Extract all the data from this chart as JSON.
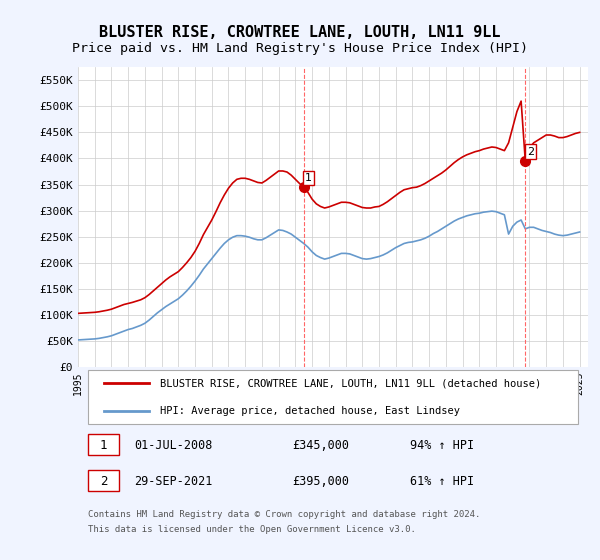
{
  "title": "BLUSTER RISE, CROWTREE LANE, LOUTH, LN11 9LL",
  "subtitle": "Price paid vs. HM Land Registry's House Price Index (HPI)",
  "title_fontsize": 11,
  "subtitle_fontsize": 9.5,
  "xlim": [
    1995.0,
    2025.5
  ],
  "ylim": [
    0,
    575000
  ],
  "yticks": [
    0,
    50000,
    100000,
    150000,
    200000,
    250000,
    300000,
    350000,
    400000,
    450000,
    500000,
    550000
  ],
  "ytick_labels": [
    "£0",
    "£50K",
    "£100K",
    "£150K",
    "£200K",
    "£250K",
    "£300K",
    "£350K",
    "£400K",
    "£450K",
    "£500K",
    "£550K"
  ],
  "xtick_years": [
    1995,
    1996,
    1997,
    1998,
    1999,
    2000,
    2001,
    2002,
    2003,
    2004,
    2005,
    2006,
    2007,
    2008,
    2009,
    2010,
    2011,
    2012,
    2013,
    2014,
    2015,
    2016,
    2017,
    2018,
    2019,
    2020,
    2021,
    2022,
    2023,
    2024,
    2025
  ],
  "sale1_x": 2008.5,
  "sale1_y": 345000,
  "sale1_label": "01-JUL-2008",
  "sale1_price": "£345,000",
  "sale1_hpi": "94% ↑ HPI",
  "sale2_x": 2021.75,
  "sale2_y": 395000,
  "sale2_label": "29-SEP-2021",
  "sale2_price": "£395,000",
  "sale2_hpi": "61% ↑ HPI",
  "red_line_color": "#cc0000",
  "blue_line_color": "#6699cc",
  "vline_color": "#ff6666",
  "marker_color": "#cc0000",
  "legend_line1": "BLUSTER RISE, CROWTREE LANE, LOUTH, LN11 9LL (detached house)",
  "legend_line2": "HPI: Average price, detached house, East Lindsey",
  "footer1": "Contains HM Land Registry data © Crown copyright and database right 2024.",
  "footer2": "This data is licensed under the Open Government Licence v3.0.",
  "background_color": "#f0f4ff",
  "plot_bg_color": "#ffffff",
  "red_hpi_x": [
    1995.0,
    1995.25,
    1995.5,
    1995.75,
    1996.0,
    1996.25,
    1996.5,
    1996.75,
    1997.0,
    1997.25,
    1997.5,
    1997.75,
    1998.0,
    1998.25,
    1998.5,
    1998.75,
    1999.0,
    1999.25,
    1999.5,
    1999.75,
    2000.0,
    2000.25,
    2000.5,
    2000.75,
    2001.0,
    2001.25,
    2001.5,
    2001.75,
    2002.0,
    2002.25,
    2002.5,
    2002.75,
    2003.0,
    2003.25,
    2003.5,
    2003.75,
    2004.0,
    2004.25,
    2004.5,
    2004.75,
    2005.0,
    2005.25,
    2005.5,
    2005.75,
    2006.0,
    2006.25,
    2006.5,
    2006.75,
    2007.0,
    2007.25,
    2007.5,
    2007.75,
    2008.0,
    2008.25,
    2008.5,
    2008.75,
    2009.0,
    2009.25,
    2009.5,
    2009.75,
    2010.0,
    2010.25,
    2010.5,
    2010.75,
    2011.0,
    2011.25,
    2011.5,
    2011.75,
    2012.0,
    2012.25,
    2012.5,
    2012.75,
    2013.0,
    2013.25,
    2013.5,
    2013.75,
    2014.0,
    2014.25,
    2014.5,
    2014.75,
    2015.0,
    2015.25,
    2015.5,
    2015.75,
    2016.0,
    2016.25,
    2016.5,
    2016.75,
    2017.0,
    2017.25,
    2017.5,
    2017.75,
    2018.0,
    2018.25,
    2018.5,
    2018.75,
    2019.0,
    2019.25,
    2019.5,
    2019.75,
    2020.0,
    2020.25,
    2020.5,
    2020.75,
    2021.0,
    2021.25,
    2021.5,
    2021.75,
    2022.0,
    2022.25,
    2022.5,
    2022.75,
    2023.0,
    2023.25,
    2023.5,
    2023.75,
    2024.0,
    2024.25,
    2024.5,
    2024.75,
    2025.0
  ],
  "red_hpi_y": [
    103000,
    103500,
    104000,
    104500,
    105000,
    106000,
    107500,
    109000,
    111000,
    114000,
    117000,
    120000,
    122000,
    124000,
    126500,
    129000,
    133000,
    139000,
    146000,
    153000,
    160000,
    167000,
    173000,
    178000,
    183000,
    191000,
    200000,
    210000,
    222000,
    237000,
    254000,
    268000,
    282000,
    298000,
    315000,
    330000,
    343000,
    353000,
    360000,
    362000,
    362000,
    360000,
    357000,
    354000,
    353000,
    358000,
    364000,
    370000,
    376000,
    376000,
    374000,
    368000,
    360000,
    352000,
    345000,
    335000,
    322000,
    313000,
    308000,
    305000,
    307000,
    310000,
    313000,
    316000,
    316000,
    315000,
    312000,
    309000,
    306000,
    305000,
    305000,
    307000,
    308000,
    312000,
    317000,
    323000,
    329000,
    335000,
    340000,
    342000,
    344000,
    345000,
    348000,
    352000,
    357000,
    362000,
    367000,
    372000,
    378000,
    385000,
    392000,
    398000,
    403000,
    407000,
    410000,
    413000,
    415000,
    418000,
    420000,
    422000,
    421000,
    418000,
    415000,
    430000,
    460000,
    490000,
    510000,
    395000,
    420000,
    430000,
    435000,
    440000,
    445000,
    445000,
    443000,
    440000,
    440000,
    442000,
    445000,
    448000,
    450000
  ],
  "blue_hpi_x": [
    1995.0,
    1995.25,
    1995.5,
    1995.75,
    1996.0,
    1996.25,
    1996.5,
    1996.75,
    1997.0,
    1997.25,
    1997.5,
    1997.75,
    1998.0,
    1998.25,
    1998.5,
    1998.75,
    1999.0,
    1999.25,
    1999.5,
    1999.75,
    2000.0,
    2000.25,
    2000.5,
    2000.75,
    2001.0,
    2001.25,
    2001.5,
    2001.75,
    2002.0,
    2002.25,
    2002.5,
    2002.75,
    2003.0,
    2003.25,
    2003.5,
    2003.75,
    2004.0,
    2004.25,
    2004.5,
    2004.75,
    2005.0,
    2005.25,
    2005.5,
    2005.75,
    2006.0,
    2006.25,
    2006.5,
    2006.75,
    2007.0,
    2007.25,
    2007.5,
    2007.75,
    2008.0,
    2008.25,
    2008.5,
    2008.75,
    2009.0,
    2009.25,
    2009.5,
    2009.75,
    2010.0,
    2010.25,
    2010.5,
    2010.75,
    2011.0,
    2011.25,
    2011.5,
    2011.75,
    2012.0,
    2012.25,
    2012.5,
    2012.75,
    2013.0,
    2013.25,
    2013.5,
    2013.75,
    2014.0,
    2014.25,
    2014.5,
    2014.75,
    2015.0,
    2015.25,
    2015.5,
    2015.75,
    2016.0,
    2016.25,
    2016.5,
    2016.75,
    2017.0,
    2017.25,
    2017.5,
    2017.75,
    2018.0,
    2018.25,
    2018.5,
    2018.75,
    2019.0,
    2019.25,
    2019.5,
    2019.75,
    2020.0,
    2020.25,
    2020.5,
    2020.75,
    2021.0,
    2021.25,
    2021.5,
    2021.75,
    2022.0,
    2022.25,
    2022.5,
    2022.75,
    2023.0,
    2023.25,
    2023.5,
    2023.75,
    2024.0,
    2024.25,
    2024.5,
    2024.75,
    2025.0
  ],
  "blue_hpi_y": [
    52000,
    52500,
    53000,
    53500,
    54000,
    55000,
    56500,
    58000,
    60000,
    63000,
    66000,
    69000,
    72000,
    74000,
    77000,
    80000,
    84000,
    90000,
    97000,
    104000,
    110000,
    116000,
    121000,
    126000,
    131000,
    138000,
    146000,
    155000,
    165000,
    176000,
    188000,
    198000,
    208000,
    218000,
    228000,
    237000,
    244000,
    249000,
    252000,
    252000,
    251000,
    249000,
    246000,
    244000,
    244000,
    248000,
    253000,
    258000,
    263000,
    262000,
    259000,
    255000,
    249000,
    243000,
    237000,
    230000,
    221000,
    214000,
    210000,
    207000,
    209000,
    212000,
    215000,
    218000,
    218000,
    217000,
    214000,
    211000,
    208000,
    207000,
    208000,
    210000,
    212000,
    215000,
    219000,
    224000,
    229000,
    233000,
    237000,
    239000,
    240000,
    242000,
    244000,
    247000,
    251000,
    256000,
    260000,
    265000,
    270000,
    275000,
    280000,
    284000,
    287000,
    290000,
    292000,
    294000,
    295000,
    297000,
    298000,
    299000,
    298000,
    295000,
    292000,
    255000,
    270000,
    278000,
    282000,
    265000,
    268000,
    268000,
    265000,
    262000,
    260000,
    258000,
    255000,
    253000,
    252000,
    253000,
    255000,
    257000,
    259000
  ]
}
